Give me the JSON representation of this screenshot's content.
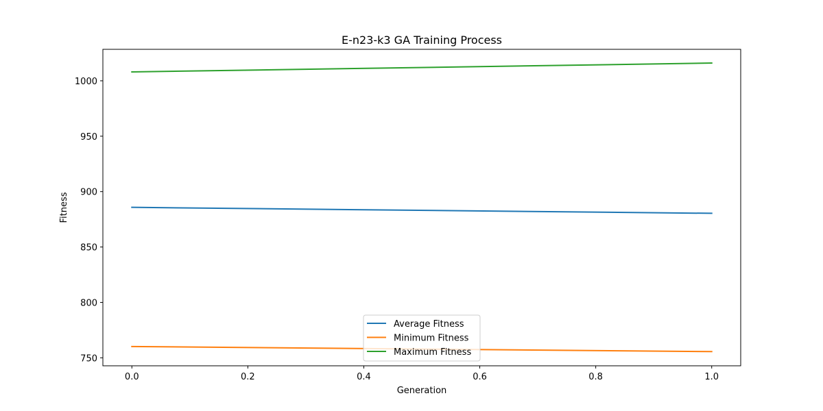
{
  "chart_data": {
    "type": "line",
    "title": "E-n23-k3 GA  Training Process",
    "xlabel": "Generation",
    "ylabel": "Fitness",
    "x": [
      0,
      1
    ],
    "xlim": [
      -0.05,
      1.05
    ],
    "ylim": [
      742.8,
      1028.4
    ],
    "xticks": [
      0.0,
      0.2,
      0.4,
      0.6,
      0.8,
      1.0
    ],
    "xtick_labels": [
      "0.0",
      "0.2",
      "0.4",
      "0.6",
      "0.8",
      "1.0"
    ],
    "yticks": [
      750,
      800,
      850,
      900,
      950,
      1000
    ],
    "ytick_labels": [
      "750",
      "800",
      "850",
      "900",
      "950",
      "1000"
    ],
    "grid": false,
    "legend_position": "lower center",
    "series": [
      {
        "name": "Average Fitness",
        "color": "#1f77b4",
        "values": [
          885.8,
          880.4
        ]
      },
      {
        "name": "Minimum Fitness",
        "color": "#ff7f0e",
        "values": [
          760.2,
          755.6
        ]
      },
      {
        "name": "Maximum Fitness",
        "color": "#2ca02c",
        "values": [
          1008.0,
          1016.0
        ]
      }
    ]
  }
}
